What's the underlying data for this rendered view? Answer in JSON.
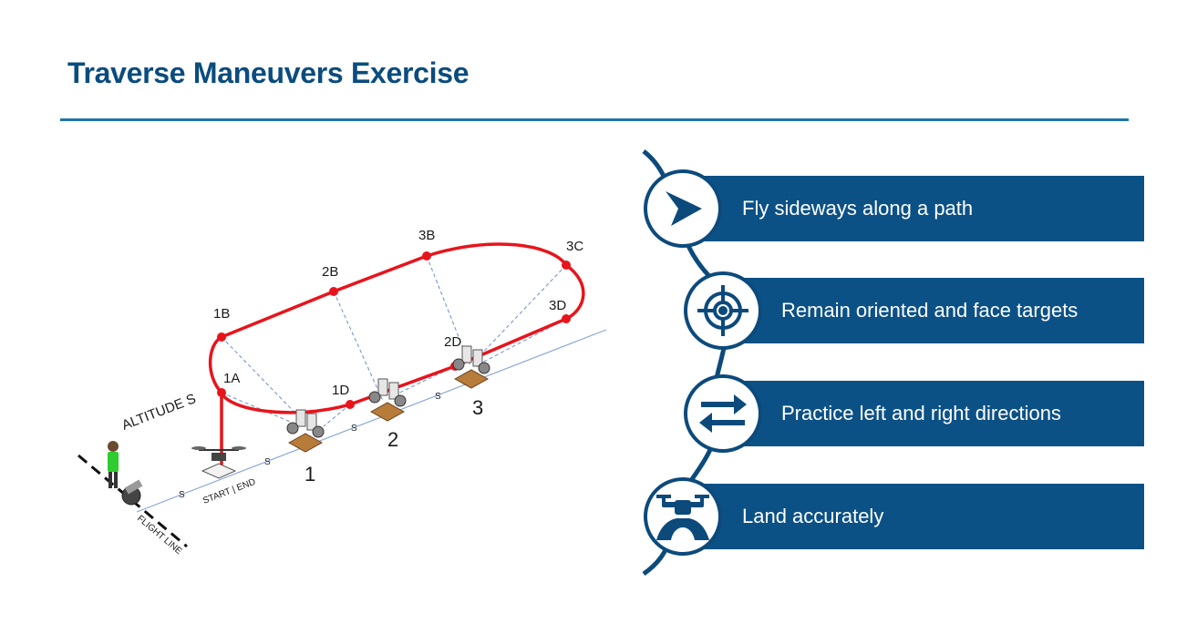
{
  "title": "Traverse Maneuvers Exercise",
  "diagram": {
    "points": [
      "1A",
      "1B",
      "1D",
      "2B",
      "2D",
      "3B",
      "3C",
      "3D"
    ],
    "stations": [
      "1",
      "2",
      "3"
    ],
    "altitude_label": "ALTITUDE S",
    "start_end_label": "START | END",
    "flight_line_label": "FLIGHT LINE",
    "spacing_label": "S",
    "path_color": "#e8141c",
    "dash_color": "#6b8fc9"
  },
  "items": [
    {
      "label": "Fly sideways along a path",
      "icon": "arrowhead-icon"
    },
    {
      "label": "Remain oriented and face targets",
      "icon": "crosshair-icon"
    },
    {
      "label": "Practice left and right directions",
      "icon": "swap-arrows-icon"
    },
    {
      "label": "Land accurately",
      "icon": "drone-landing-icon"
    }
  ],
  "colors": {
    "accent": "#0b4c7e",
    "bar": "#0c5186"
  }
}
